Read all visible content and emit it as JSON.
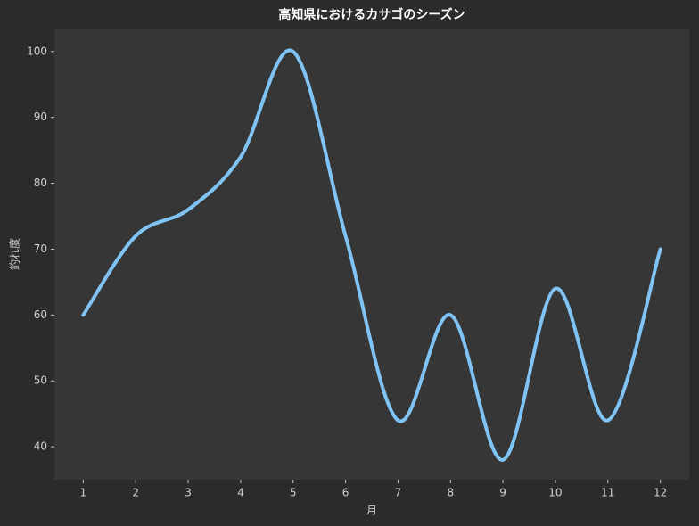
{
  "chart_data": {
    "type": "line",
    "title": "高知県におけるカサゴのシーズン",
    "x_label": "月",
    "y_label": "釣れ度",
    "x": [
      1,
      2,
      3,
      4,
      5,
      6,
      7,
      8,
      9,
      10,
      11,
      12
    ],
    "series": [
      {
        "name": "釣れ度",
        "color": "#7fc4f5",
        "values": [
          60,
          72,
          76,
          84,
          100,
          72,
          44,
          60,
          38,
          64,
          44,
          70
        ]
      }
    ],
    "xlim": [
      0.45,
      12.55
    ],
    "xticks": [
      1,
      2,
      3,
      4,
      5,
      6,
      7,
      8,
      9,
      10,
      11,
      12
    ],
    "ylim": [
      35,
      103.5
    ],
    "yticks": [
      40,
      50,
      60,
      70,
      80,
      90,
      100
    ],
    "grid": false,
    "smooth": true
  }
}
